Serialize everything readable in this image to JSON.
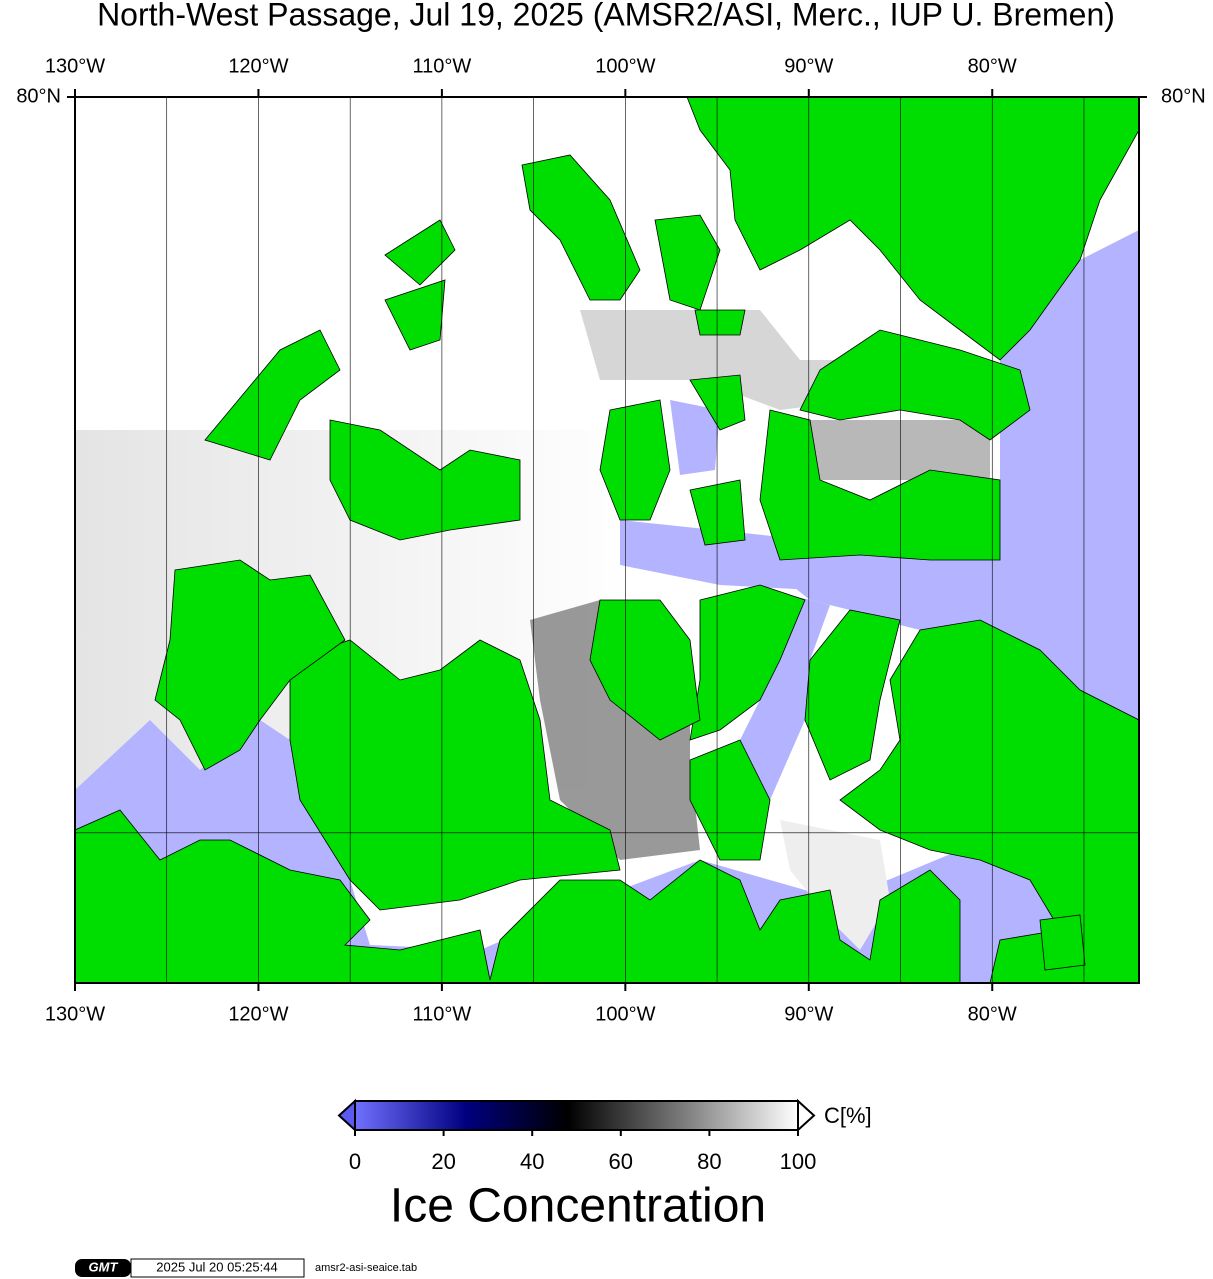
{
  "title": "North-West Passage, Jul 19, 2025 (AMSR2/ASI, Merc., IUP U. Bremen)",
  "map": {
    "lonlim": [
      -130,
      -72
    ],
    "latlim": [
      67,
      80
    ],
    "lon_ticks": [
      {
        "value": -130,
        "label": "130°W"
      },
      {
        "value": -120,
        "label": "120°W"
      },
      {
        "value": -110,
        "label": "110°W"
      },
      {
        "value": -100,
        "label": "100°W"
      },
      {
        "value": -90,
        "label": "90°W"
      },
      {
        "value": -80,
        "label": "80°W"
      }
    ],
    "lat_ticks": [
      {
        "value": 80,
        "label": "80°N"
      }
    ],
    "meridians": [
      -125,
      -115,
      -105,
      -95,
      -85,
      -75
    ],
    "parallels": [
      70
    ]
  },
  "colorbar": {
    "range": [
      0,
      100
    ],
    "ticks": [
      0,
      20,
      40,
      60,
      80,
      100
    ],
    "unit_label": "C[%]",
    "title": "Ice Concentration"
  },
  "footer": {
    "logo": "GMT",
    "timestamp": "2025 Jul 20 05:25:44",
    "source": "amsr2-asi-seaice.tab"
  }
}
